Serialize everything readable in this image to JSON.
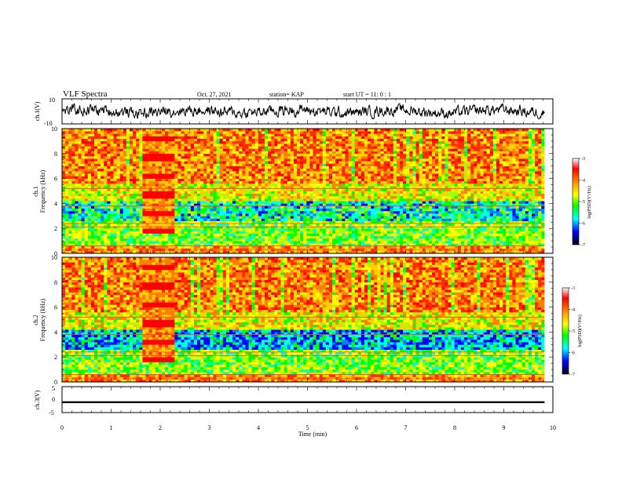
{
  "header": {
    "title": "VLF Spectra",
    "date": "Oct. 27, 2021",
    "station": "station= KAP",
    "start": "start  UT =   11: 0  : 1"
  },
  "colors": {
    "spectrogram_scale": [
      "#ffffff",
      "#ff0000",
      "#ffa500",
      "#ffff00",
      "#00ff00",
      "#00ffff",
      "#0000ff",
      "#000000"
    ],
    "trace": "#000000"
  },
  "chart_data": [
    {
      "type": "line",
      "name": "ch1-waveform",
      "ylabel": "ch.1(V)",
      "ylim": [
        -10,
        10
      ],
      "yticks": [
        "10",
        "-10"
      ],
      "xlim": [
        0,
        9.83
      ],
      "description_of_signal": "noisy broadband trace roughly between -5 and +5 V"
    },
    {
      "type": "heatmap",
      "name": "ch1-spectrogram",
      "ylabel": "ch.1\nFrequency (kHz)",
      "ylabel_line1": "ch.1",
      "ylabel_line2": "Frequency (kHz)",
      "ylim": [
        0,
        10
      ],
      "yticks": [
        "0",
        "2",
        "4",
        "6",
        "8",
        "10"
      ],
      "colorbar": {
        "label": "log(PSD)(V²/Hz)",
        "range": [
          -7,
          -3
        ],
        "ticks": [
          "-3",
          "-4",
          "-5",
          "-6",
          "-7"
        ]
      }
    },
    {
      "type": "heatmap",
      "name": "ch2-spectrogram",
      "ylabel": "ch.2\nFrequency (kHz)",
      "ylabel_line1": "ch.2",
      "ylabel_line2": "Frequency (kHz)",
      "ylim": [
        0,
        10
      ],
      "yticks": [
        "0",
        "2",
        "4",
        "6",
        "8",
        "10"
      ],
      "colorbar": {
        "label": "log(PSD)(V²/Hz)",
        "range": [
          -7,
          -3
        ],
        "ticks": [
          "-3",
          "-4",
          "-5",
          "-6",
          "-7"
        ]
      }
    },
    {
      "type": "line",
      "name": "ch3-waveform",
      "ylabel": "ch.3(V)",
      "ylim": [
        -5,
        5
      ],
      "yticks": [
        "5",
        "0",
        "-5"
      ],
      "level": -1,
      "xlim": [
        0,
        9.83
      ]
    }
  ],
  "xaxis": {
    "label": "Time (min)",
    "range": [
      0,
      10
    ],
    "ticks": [
      "0",
      "1",
      "2",
      "3",
      "4",
      "5",
      "6",
      "7",
      "8",
      "9",
      "10"
    ]
  }
}
